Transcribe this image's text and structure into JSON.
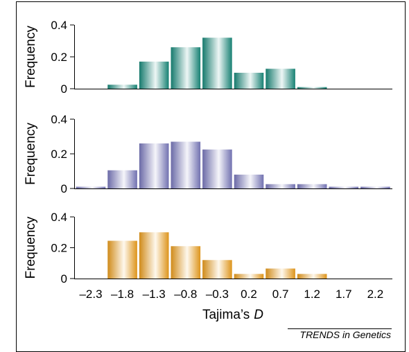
{
  "chart_data": {
    "type": "bar",
    "xlabel": "Tajima’s",
    "xlabel_italic": "D",
    "x_ticks": [
      "–2.3",
      "–1.8",
      "–1.3",
      "–0.8",
      "–0.3",
      "0.2",
      "0.7",
      "1.2",
      "1.7",
      "2.2"
    ],
    "ylabel": "Frequency",
    "y_ticks": [
      "0",
      "0.2",
      "0.4"
    ],
    "ylim": [
      0,
      0.4
    ],
    "grid": false,
    "credit": "TRENDS in Genetics",
    "bins": [
      -2.3,
      -1.8,
      -1.3,
      -0.8,
      -0.3,
      0.2,
      0.7,
      1.2,
      1.7,
      2.2
    ],
    "panels": [
      {
        "color": "#1a8f80",
        "values": [
          0,
          0.025,
          0.17,
          0.26,
          0.32,
          0.1,
          0.125,
          0.01,
          0,
          0
        ]
      },
      {
        "color": "#7e7dc4",
        "values": [
          0.01,
          0.105,
          0.26,
          0.27,
          0.225,
          0.08,
          0.025,
          0.025,
          0.01,
          0.01
        ]
      },
      {
        "color": "#f5a41e",
        "values": [
          0,
          0.245,
          0.3,
          0.21,
          0.12,
          0.03,
          0.065,
          0.03,
          0,
          0
        ]
      }
    ]
  }
}
